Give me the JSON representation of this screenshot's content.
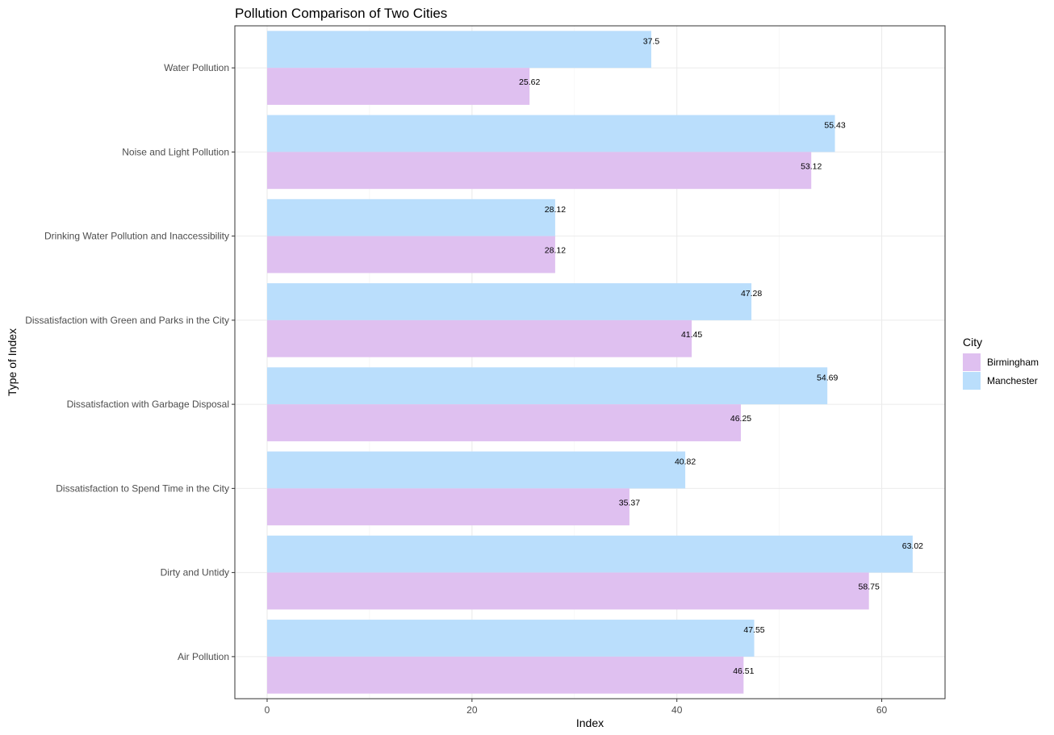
{
  "chart_data": {
    "type": "bar",
    "orientation": "horizontal",
    "title": "Pollution Comparison of Two Cities",
    "xlabel": "Index",
    "ylabel": "Type of Index",
    "xlim": [
      -3.15,
      66.18
    ],
    "xticks": [
      0,
      20,
      40,
      60
    ],
    "grid": true,
    "legend_position": "right",
    "legend_title": "City",
    "categories": [
      "Water Pollution",
      "Noise and Light Pollution",
      "Drinking Water Pollution and Inaccessibility",
      "Dissatisfaction with Green and Parks in the City",
      "Dissatisfaction with Garbage Disposal",
      "Dissatisfaction to Spend Time in the City",
      "Dirty and Untidy",
      "Air Pollution"
    ],
    "series": [
      {
        "name": "Birmingham",
        "color": "#dfc0f0",
        "values": [
          25.62,
          53.12,
          28.12,
          41.45,
          46.25,
          35.37,
          58.75,
          46.51
        ],
        "labels": [
          "25.62",
          "53.12",
          "28.12",
          "41.45",
          "46.25",
          "35.37",
          "58.75",
          "46.51"
        ]
      },
      {
        "name": "Manchester",
        "color": "#badefc",
        "values": [
          37.5,
          55.43,
          28.12,
          47.28,
          54.69,
          40.82,
          63.02,
          47.55
        ],
        "labels": [
          "37.5",
          "55.43",
          "28.12",
          "47.28",
          "54.69",
          "40.82",
          "63.02",
          "47.55"
        ]
      }
    ]
  }
}
